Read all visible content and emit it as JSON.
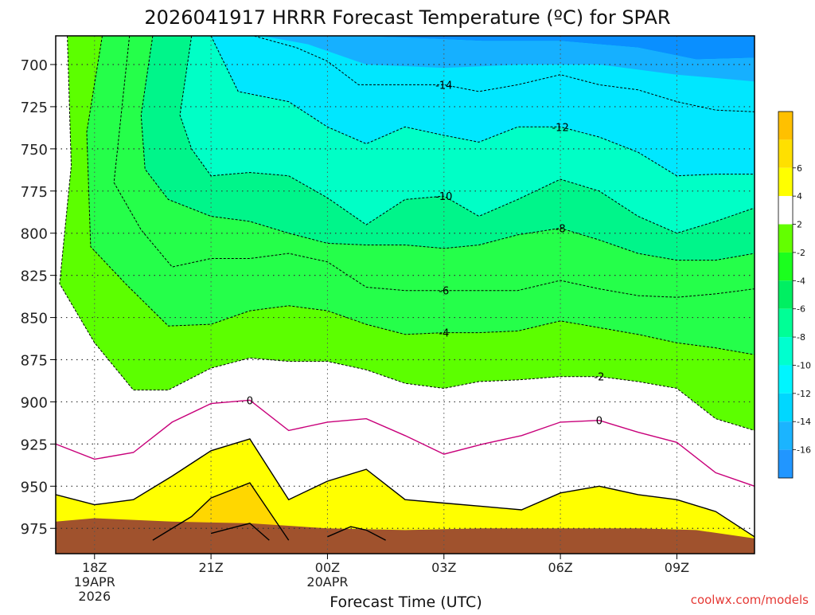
{
  "title": "2026041917 HRRR Forecast Temperature (ºC) for SPAR",
  "credit": "coolwx.com/models",
  "chart_data": {
    "type": "heatmap",
    "title": "2026041917 HRRR Forecast Temperature (ºC) for SPAR",
    "xlabel": "Forecast Time (UTC)",
    "ylabel": "",
    "x_ticks": [
      {
        "hour": 18,
        "lines": [
          "18Z",
          "19APR",
          "2026"
        ]
      },
      {
        "hour": 21,
        "lines": [
          "21Z"
        ]
      },
      {
        "hour": 24,
        "lines": [
          "00Z",
          "20APR"
        ]
      },
      {
        "hour": 27,
        "lines": [
          "03Z"
        ]
      },
      {
        "hour": 30,
        "lines": [
          "06Z"
        ]
      },
      {
        "hour": 33,
        "lines": [
          "09Z"
        ]
      }
    ],
    "y_ticks": [
      700,
      725,
      750,
      775,
      800,
      825,
      850,
      875,
      900,
      925,
      950,
      975
    ],
    "xlim": [
      17,
      35
    ],
    "ylim": [
      990,
      683
    ],
    "grid": true,
    "colorbar": {
      "levels": [
        -18,
        -16,
        -14,
        -12,
        -10,
        -8,
        -6,
        -4,
        -2,
        2,
        4,
        6,
        8
      ],
      "labels": [
        "-16",
        "-14",
        "-12",
        "-10",
        "-8",
        "-6",
        "-4",
        "-2",
        "2",
        "4",
        "6"
      ],
      "colors": [
        "#2196ff",
        "#1bb4ff",
        "#00d7ff",
        "#00f5ff",
        "#00ffcf",
        "#00ff96",
        "#00ef62",
        "#1bff1e",
        "#63ff00",
        "#ffffff",
        "#ffff00",
        "#ffe000",
        "#ffc000"
      ]
    },
    "fill_colors": {
      "cold_deep": "#0a8fff",
      "cold_mid": "#16b0ff",
      "cold": "#00e7ff",
      "cool": "#00ffc6",
      "mild": "#00f58a",
      "temperate": "#25ff4a",
      "near_freezing_green": "#5cff00",
      "above_freezing": "#ffffff",
      "warm": "#ffff00",
      "warmer": "#ffd700",
      "warmest": "#ffbe00",
      "ground": "#a0522d"
    },
    "contour_labels": [
      "-14",
      "-12",
      "-10",
      "-8",
      "-6",
      "-4",
      "-2",
      "0",
      "0"
    ],
    "series": [
      {
        "value": -14,
        "line": "dashed",
        "points": [
          [
            17.4,
            683
          ],
          [
            18.4,
            683
          ],
          [
            22.1,
            683
          ],
          [
            23.2,
            690
          ],
          [
            24.0,
            698
          ],
          [
            24.8,
            712
          ],
          [
            26.0,
            712
          ],
          [
            27.0,
            712
          ],
          [
            27.9,
            716
          ],
          [
            28.9,
            712
          ],
          [
            30.0,
            706
          ],
          [
            31.0,
            712
          ],
          [
            32.0,
            715
          ],
          [
            33.0,
            722
          ],
          [
            34.0,
            727
          ],
          [
            35.0,
            728
          ]
        ]
      },
      {
        "value": -12,
        "line": "dashed",
        "points": [
          [
            21.0,
            683
          ],
          [
            21.7,
            716
          ],
          [
            23.0,
            722
          ],
          [
            24.0,
            737
          ],
          [
            25.0,
            747
          ],
          [
            26.0,
            737
          ],
          [
            27.0,
            742
          ],
          [
            27.9,
            746
          ],
          [
            28.9,
            737
          ],
          [
            30.0,
            737
          ],
          [
            31.0,
            743
          ],
          [
            32.0,
            752
          ],
          [
            33.0,
            766
          ],
          [
            34.0,
            765
          ],
          [
            35.0,
            765
          ]
        ]
      },
      {
        "value": -10,
        "line": "dashed",
        "points": [
          [
            20.5,
            683
          ],
          [
            20.2,
            730
          ],
          [
            20.5,
            750
          ],
          [
            21.0,
            766
          ],
          [
            22.0,
            764
          ],
          [
            23.0,
            766
          ],
          [
            24.0,
            779
          ],
          [
            25.0,
            795
          ],
          [
            26.0,
            780
          ],
          [
            27.0,
            778
          ],
          [
            27.9,
            790
          ],
          [
            28.9,
            780
          ],
          [
            30.0,
            768
          ],
          [
            31.0,
            775
          ],
          [
            32.0,
            790
          ],
          [
            33.0,
            800
          ],
          [
            34.0,
            793
          ],
          [
            35.0,
            785
          ]
        ]
      },
      {
        "value": -8,
        "line": "dashed",
        "points": [
          [
            19.5,
            683
          ],
          [
            19.2,
            730
          ],
          [
            19.3,
            762
          ],
          [
            19.9,
            780
          ],
          [
            21.0,
            790
          ],
          [
            22.0,
            793
          ],
          [
            23.0,
            800
          ],
          [
            24.0,
            806
          ],
          [
            25.0,
            807
          ],
          [
            26.0,
            807
          ],
          [
            27.0,
            809
          ],
          [
            27.9,
            807
          ],
          [
            28.9,
            801
          ],
          [
            30.0,
            797
          ],
          [
            31.0,
            804
          ],
          [
            32.0,
            812
          ],
          [
            33.0,
            816
          ],
          [
            34.0,
            816
          ],
          [
            35.0,
            812
          ]
        ]
      },
      {
        "value": -6,
        "line": "dashed",
        "points": [
          [
            18.9,
            683
          ],
          [
            18.5,
            770
          ],
          [
            19.2,
            798
          ],
          [
            20.0,
            820
          ],
          [
            21.0,
            815
          ],
          [
            22.0,
            815
          ],
          [
            23.0,
            812
          ],
          [
            24.0,
            817
          ],
          [
            25.0,
            832
          ],
          [
            26.0,
            834
          ],
          [
            27.0,
            834
          ],
          [
            27.9,
            834
          ],
          [
            28.9,
            834
          ],
          [
            30.0,
            828
          ],
          [
            31.0,
            833
          ],
          [
            32.0,
            837
          ],
          [
            33.0,
            838
          ],
          [
            34.0,
            836
          ],
          [
            35.0,
            833
          ]
        ]
      },
      {
        "value": -4,
        "line": "dashed",
        "points": [
          [
            18.2,
            683
          ],
          [
            17.8,
            740
          ],
          [
            17.9,
            808
          ],
          [
            18.8,
            830
          ],
          [
            19.9,
            855
          ],
          [
            21.0,
            854
          ],
          [
            22.0,
            846
          ],
          [
            23.0,
            843
          ],
          [
            24.0,
            846
          ],
          [
            25.0,
            854
          ],
          [
            26.0,
            860
          ],
          [
            27.0,
            859
          ],
          [
            27.9,
            859
          ],
          [
            28.9,
            858
          ],
          [
            30.0,
            852
          ],
          [
            31.0,
            856
          ],
          [
            32.0,
            860
          ],
          [
            33.0,
            865
          ],
          [
            34.0,
            868
          ],
          [
            35.0,
            872
          ]
        ]
      },
      {
        "value": -2,
        "line": "dashed",
        "points": [
          [
            17.3,
            683
          ],
          [
            17.4,
            760
          ],
          [
            17.1,
            830
          ],
          [
            18.0,
            865
          ],
          [
            19.0,
            893
          ],
          [
            19.9,
            893
          ],
          [
            21.0,
            880
          ],
          [
            22.0,
            874
          ],
          [
            23.0,
            876
          ],
          [
            24.0,
            876
          ],
          [
            25.0,
            881
          ],
          [
            26.0,
            889
          ],
          [
            27.0,
            892
          ],
          [
            27.9,
            888
          ],
          [
            28.9,
            887
          ],
          [
            30.0,
            885
          ],
          [
            31.0,
            885
          ],
          [
            32.0,
            888
          ],
          [
            33.0,
            892
          ],
          [
            34.0,
            910
          ],
          [
            35.0,
            917
          ]
        ]
      },
      {
        "value": 0,
        "line": "solid",
        "color": "#c8007a",
        "points": [
          [
            17.0,
            925
          ],
          [
            18.0,
            934
          ],
          [
            19.0,
            930
          ],
          [
            20.0,
            912
          ],
          [
            21.0,
            901
          ],
          [
            22.0,
            899
          ],
          [
            23.0,
            917
          ],
          [
            24.0,
            912
          ],
          [
            25.0,
            910
          ],
          [
            26.0,
            920
          ],
          [
            27.0,
            931
          ],
          [
            28.0,
            925
          ],
          [
            29.0,
            920
          ],
          [
            30.0,
            912
          ],
          [
            31.0,
            911
          ],
          [
            32.0,
            918
          ],
          [
            33.0,
            924
          ],
          [
            34.0,
            942
          ],
          [
            35.0,
            950
          ]
        ]
      },
      {
        "value": 2,
        "line": "solid",
        "color": "#000000",
        "points": [
          [
            17.0,
            955
          ],
          [
            18.0,
            961
          ],
          [
            19.0,
            958
          ],
          [
            20.0,
            944
          ],
          [
            21.0,
            929
          ],
          [
            22.0,
            922
          ],
          [
            23.0,
            958
          ],
          [
            24.0,
            947
          ],
          [
            25.0,
            940
          ],
          [
            26.0,
            958
          ],
          [
            27.0,
            960
          ],
          [
            28.0,
            962
          ],
          [
            29.0,
            964
          ],
          [
            30.0,
            954
          ],
          [
            31.0,
            950
          ],
          [
            32.0,
            955
          ],
          [
            33.0,
            958
          ],
          [
            34.0,
            965
          ],
          [
            35.0,
            980
          ]
        ]
      },
      {
        "value": 4,
        "line": "solid",
        "color": "#000000",
        "points": [
          [
            19.5,
            982
          ],
          [
            20.5,
            968
          ],
          [
            21.0,
            957
          ],
          [
            22.0,
            948
          ],
          [
            23.0,
            982
          ]
        ]
      },
      {
        "value": 6,
        "line": "solid",
        "color": "#000000",
        "points": [
          [
            21.0,
            978
          ],
          [
            21.5,
            975
          ],
          [
            22.0,
            972
          ],
          [
            22.5,
            982
          ]
        ]
      },
      {
        "value": 4,
        "line": "solid",
        "color": "#000000",
        "points": [
          [
            24.0,
            980
          ],
          [
            24.6,
            974
          ],
          [
            25.0,
            976
          ],
          [
            25.5,
            982
          ]
        ]
      }
    ]
  }
}
